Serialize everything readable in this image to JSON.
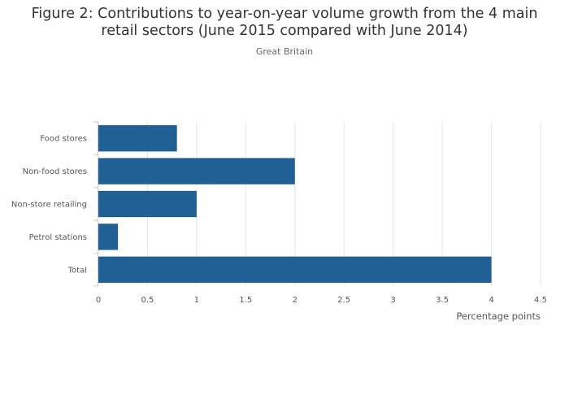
{
  "title_line1": "Figure 2: Contributions to year-on-year volume growth from the 4 main",
  "title_line2": "retail sectors (June 2015 compared with June 2014)",
  "subtitle": "Great Britain",
  "chart_data": {
    "type": "bar",
    "orientation": "horizontal",
    "categories": [
      "Food stores",
      "Non-food stores",
      "Non-store retailing",
      "Petrol stations",
      "Total"
    ],
    "values": [
      0.8,
      2.0,
      1.0,
      0.2,
      4.0
    ],
    "xlabel": "Percentage points",
    "ylabel": "",
    "xlim": [
      0,
      4.5
    ],
    "xticks": [
      "0",
      "0.5",
      "1",
      "1.5",
      "2",
      "2.5",
      "3",
      "3.5",
      "4",
      "4.5"
    ],
    "grid": true,
    "bar_color": "#206095",
    "grid_color": "#e6e6e6"
  }
}
